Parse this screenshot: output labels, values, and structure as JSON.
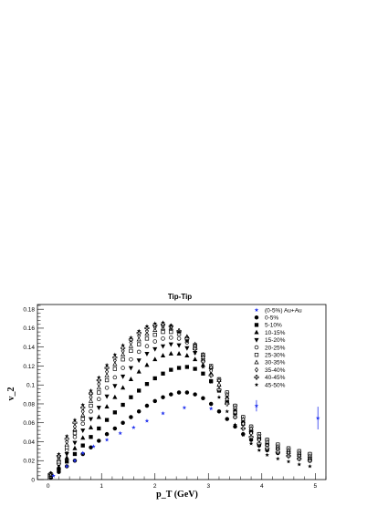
{
  "chart_data": {
    "type": "scatter",
    "title": "Tip-Tip",
    "xlabel": "p_T (GeV)",
    "ylabel": "v_2",
    "xlim": [
      -0.2,
      5.2
    ],
    "ylim": [
      0,
      0.185
    ],
    "x_ticks": [
      0,
      1,
      2,
      3,
      4,
      5
    ],
    "y_ticks": [
      0,
      0.02,
      0.04,
      0.06,
      0.08,
      0.1,
      0.12,
      0.14,
      0.16,
      0.18
    ],
    "x_tick_labels": [
      "0",
      "1",
      "2",
      "3",
      "4",
      "5"
    ],
    "y_tick_labels": [
      "0",
      "0.02",
      "0.04",
      "0.06",
      "0.08",
      "0.1",
      "0.12",
      "0.14",
      "0.16",
      "0.18"
    ],
    "grid": false,
    "legend_position": "top-right",
    "series": [
      {
        "name": "(0-5%) Au+Au",
        "marker": "star",
        "color": "#2233ee",
        "x": [
          0.1,
          0.35,
          0.5,
          0.65,
          0.85,
          1.1,
          1.35,
          1.6,
          1.85,
          2.15,
          2.55,
          3.05,
          3.9,
          5.05
        ],
        "y": [
          0.004,
          0.014,
          0.02,
          0.028,
          0.035,
          0.042,
          0.049,
          0.055,
          0.062,
          0.07,
          0.076,
          0.075,
          0.078,
          0.065
        ]
      },
      {
        "name": "0-5%",
        "marker": "circle-filled",
        "color": "#000000",
        "x": [
          0.05,
          0.2,
          0.35,
          0.5,
          0.65,
          0.8,
          0.95,
          1.1,
          1.25,
          1.4,
          1.55,
          1.7,
          1.85,
          2.0,
          2.15,
          2.3,
          2.45,
          2.6,
          2.75,
          2.9,
          3.05,
          3.2,
          3.35,
          3.5,
          3.65,
          3.8,
          3.95,
          4.1,
          4.3,
          4.5,
          4.7,
          4.9
        ],
        "y": [
          0.002,
          0.008,
          0.014,
          0.02,
          0.027,
          0.034,
          0.041,
          0.048,
          0.054,
          0.06,
          0.066,
          0.072,
          0.078,
          0.083,
          0.087,
          0.09,
          0.092,
          0.092,
          0.09,
          0.086,
          0.08,
          0.072,
          0.064,
          0.056,
          0.048,
          0.042,
          0.036,
          0.031,
          0.028,
          0.025,
          0.022,
          0.02
        ]
      },
      {
        "name": "5-10%",
        "marker": "square-filled",
        "color": "#000000",
        "x": [
          0.05,
          0.2,
          0.35,
          0.5,
          0.65,
          0.8,
          0.95,
          1.1,
          1.25,
          1.4,
          1.55,
          1.7,
          1.85,
          2.0,
          2.15,
          2.3,
          2.45,
          2.6,
          2.75,
          2.9,
          3.05,
          3.2,
          3.35,
          3.5,
          3.65,
          3.8,
          3.95,
          4.1,
          4.3,
          4.5,
          4.7,
          4.9
        ],
        "y": [
          0.003,
          0.011,
          0.019,
          0.027,
          0.036,
          0.045,
          0.054,
          0.063,
          0.071,
          0.079,
          0.087,
          0.094,
          0.101,
          0.107,
          0.112,
          0.116,
          0.118,
          0.119,
          0.117,
          0.112,
          0.104,
          0.094,
          0.082,
          0.07,
          0.059,
          0.05,
          0.043,
          0.037,
          0.033,
          0.029,
          0.026,
          0.023
        ]
      },
      {
        "name": "10-15%",
        "marker": "triangle-up-filled",
        "color": "#000000",
        "x": [
          0.05,
          0.2,
          0.35,
          0.5,
          0.65,
          0.8,
          0.95,
          1.1,
          1.25,
          1.4,
          1.55,
          1.7,
          1.85,
          2.0,
          2.15,
          2.3,
          2.45,
          2.6,
          2.75,
          2.9,
          3.05,
          3.2,
          3.35,
          3.5,
          3.65,
          3.8,
          3.95,
          4.1,
          4.3,
          4.5,
          4.7,
          4.9
        ],
        "y": [
          0.003,
          0.013,
          0.023,
          0.033,
          0.044,
          0.055,
          0.066,
          0.077,
          0.087,
          0.097,
          0.106,
          0.114,
          0.121,
          0.127,
          0.131,
          0.133,
          0.133,
          0.131,
          0.127,
          0.121,
          0.112,
          0.1,
          0.087,
          0.074,
          0.062,
          0.052,
          0.044,
          0.038,
          0.033,
          0.029,
          0.026,
          0.023
        ]
      },
      {
        "name": "15-20%",
        "marker": "triangle-down-filled",
        "color": "#000000",
        "x": [
          0.05,
          0.2,
          0.35,
          0.5,
          0.65,
          0.8,
          0.95,
          1.1,
          1.25,
          1.4,
          1.55,
          1.7,
          1.85,
          2.0,
          2.15,
          2.3,
          2.45,
          2.6,
          2.75,
          2.9,
          3.05,
          3.2,
          3.35,
          3.5,
          3.65,
          3.8,
          3.95,
          4.1,
          4.3,
          4.5,
          4.7,
          4.9
        ],
        "y": [
          0.004,
          0.015,
          0.027,
          0.039,
          0.052,
          0.064,
          0.076,
          0.088,
          0.099,
          0.109,
          0.118,
          0.126,
          0.133,
          0.138,
          0.141,
          0.143,
          0.142,
          0.139,
          0.134,
          0.126,
          0.116,
          0.104,
          0.09,
          0.077,
          0.064,
          0.054,
          0.046,
          0.04,
          0.035,
          0.031,
          0.028,
          0.025
        ]
      },
      {
        "name": "20-25%",
        "marker": "circle-open",
        "color": "#000000",
        "x": [
          0.05,
          0.2,
          0.35,
          0.5,
          0.65,
          0.8,
          0.95,
          1.1,
          1.25,
          1.4,
          1.55,
          1.7,
          1.85,
          2.0,
          2.15,
          2.3,
          2.45,
          2.6,
          2.75,
          2.9,
          3.05,
          3.2,
          3.35,
          3.5,
          3.65,
          3.8,
          3.95,
          4.1,
          4.3,
          4.5,
          4.7,
          4.9
        ],
        "y": [
          0.004,
          0.017,
          0.031,
          0.045,
          0.059,
          0.072,
          0.085,
          0.097,
          0.108,
          0.118,
          0.127,
          0.135,
          0.141,
          0.146,
          0.149,
          0.15,
          0.149,
          0.145,
          0.139,
          0.13,
          0.119,
          0.106,
          0.092,
          0.078,
          0.066,
          0.056,
          0.048,
          0.042,
          0.037,
          0.033,
          0.03,
          0.027
        ]
      },
      {
        "name": "25-30%",
        "marker": "square-open",
        "color": "#000000",
        "x": [
          0.05,
          0.2,
          0.35,
          0.5,
          0.65,
          0.8,
          0.95,
          1.1,
          1.25,
          1.4,
          1.55,
          1.7,
          1.85,
          2.0,
          2.15,
          2.3,
          2.45,
          2.6,
          2.75,
          2.9,
          3.05,
          3.2,
          3.35,
          3.5,
          3.65,
          3.8,
          3.95,
          4.1,
          4.3,
          4.5,
          4.7,
          4.9
        ],
        "y": [
          0.005,
          0.019,
          0.034,
          0.049,
          0.064,
          0.078,
          0.092,
          0.105,
          0.117,
          0.127,
          0.136,
          0.143,
          0.149,
          0.153,
          0.156,
          0.156,
          0.154,
          0.149,
          0.142,
          0.132,
          0.12,
          0.106,
          0.092,
          0.078,
          0.066,
          0.056,
          0.048,
          0.042,
          0.037,
          0.033,
          0.03,
          0.027
        ]
      },
      {
        "name": "30-35%",
        "marker": "triangle-up-open",
        "color": "#000000",
        "x": [
          0.05,
          0.2,
          0.35,
          0.5,
          0.65,
          0.8,
          0.95,
          1.1,
          1.25,
          1.4,
          1.55,
          1.7,
          1.85,
          2.0,
          2.15,
          2.3,
          2.45,
          2.6,
          2.75,
          2.9,
          3.05,
          3.2,
          3.35,
          3.5,
          3.65,
          3.8,
          3.95,
          4.1,
          4.3,
          4.5,
          4.7,
          4.9
        ],
        "y": [
          0.005,
          0.021,
          0.037,
          0.053,
          0.068,
          0.083,
          0.097,
          0.11,
          0.122,
          0.132,
          0.141,
          0.148,
          0.154,
          0.158,
          0.16,
          0.16,
          0.157,
          0.151,
          0.143,
          0.132,
          0.119,
          0.105,
          0.09,
          0.076,
          0.064,
          0.054,
          0.046,
          0.04,
          0.035,
          0.031,
          0.028,
          0.025
        ]
      },
      {
        "name": "35-40%",
        "marker": "diamond-open",
        "color": "#000000",
        "x": [
          0.05,
          0.2,
          0.35,
          0.5,
          0.65,
          0.8,
          0.95,
          1.1,
          1.25,
          1.4,
          1.55,
          1.7,
          1.85,
          2.0,
          2.15,
          2.3,
          2.45,
          2.6,
          2.75,
          2.9,
          3.05,
          3.2,
          3.35,
          3.5,
          3.65,
          3.8,
          3.95,
          4.1,
          4.3,
          4.5,
          4.7,
          4.9
        ],
        "y": [
          0.006,
          0.023,
          0.04,
          0.056,
          0.072,
          0.087,
          0.101,
          0.114,
          0.126,
          0.136,
          0.145,
          0.152,
          0.157,
          0.161,
          0.162,
          0.161,
          0.157,
          0.15,
          0.141,
          0.129,
          0.115,
          0.1,
          0.085,
          0.071,
          0.059,
          0.049,
          0.042,
          0.036,
          0.032,
          0.028,
          0.025,
          0.022
        ]
      },
      {
        "name": "40-45%",
        "marker": "cross-open",
        "color": "#000000",
        "x": [
          0.05,
          0.2,
          0.35,
          0.5,
          0.65,
          0.8,
          0.95,
          1.1,
          1.25,
          1.4,
          1.55,
          1.7,
          1.85,
          2.0,
          2.15,
          2.3,
          2.45,
          2.6,
          2.75,
          2.9,
          3.05,
          3.2,
          3.35,
          3.5,
          3.65,
          3.8,
          3.95,
          4.1,
          4.3,
          4.5,
          4.7,
          4.9
        ],
        "y": [
          0.006,
          0.025,
          0.043,
          0.06,
          0.076,
          0.091,
          0.105,
          0.118,
          0.129,
          0.139,
          0.148,
          0.155,
          0.16,
          0.163,
          0.164,
          0.162,
          0.157,
          0.149,
          0.138,
          0.125,
          0.11,
          0.095,
          0.08,
          0.066,
          0.054,
          0.045,
          0.038,
          0.033,
          0.029,
          0.025,
          0.022,
          0.02
        ]
      },
      {
        "name": "45-50%",
        "marker": "star-black",
        "color": "#000000",
        "x": [
          0.05,
          0.2,
          0.35,
          0.5,
          0.65,
          0.8,
          0.95,
          1.1,
          1.25,
          1.4,
          1.55,
          1.7,
          1.85,
          2.0,
          2.15,
          2.3,
          2.45,
          2.6,
          2.75,
          2.9,
          3.05,
          3.2,
          3.35,
          3.5,
          3.65,
          3.8,
          3.95,
          4.1,
          4.3,
          4.5,
          4.7,
          4.9
        ],
        "y": [
          0.007,
          0.027,
          0.046,
          0.063,
          0.079,
          0.094,
          0.108,
          0.121,
          0.132,
          0.142,
          0.15,
          0.157,
          0.162,
          0.165,
          0.166,
          0.163,
          0.156,
          0.146,
          0.134,
          0.119,
          0.103,
          0.087,
          0.072,
          0.058,
          0.047,
          0.038,
          0.031,
          0.026,
          0.022,
          0.019,
          0.016,
          0.014
        ]
      }
    ],
    "error_bars": [
      {
        "series": "(0-5%) Au+Au",
        "x": 3.9,
        "y": 0.078,
        "err": 0.006
      },
      {
        "series": "(0-5%) Au+Au",
        "x": 5.05,
        "y": 0.065,
        "err": 0.012
      }
    ]
  }
}
